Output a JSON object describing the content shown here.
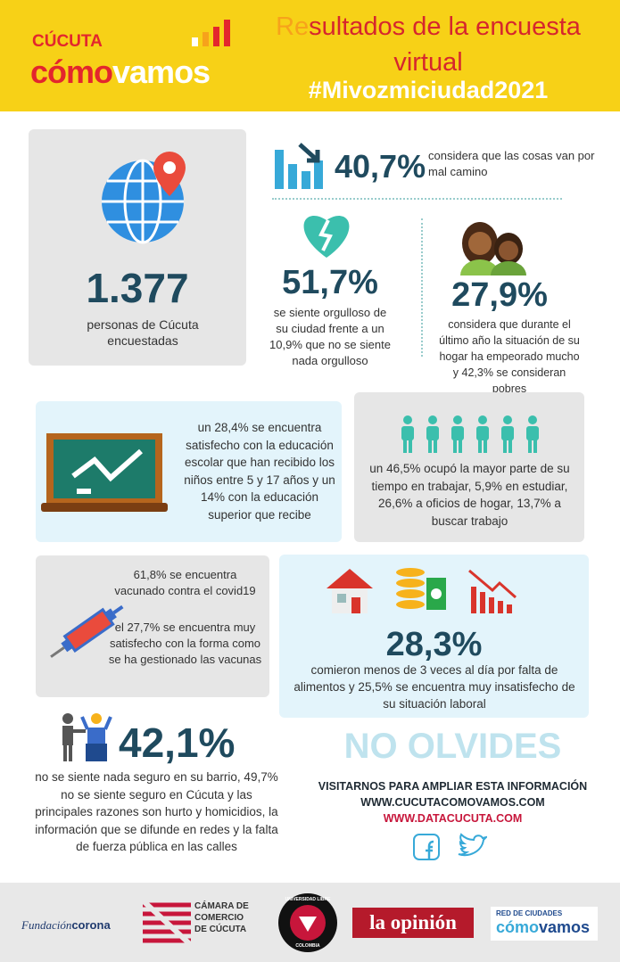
{
  "header": {
    "brand_top": "CÚCUTA",
    "brand_como": "cómo",
    "brand_vamos": "vamos",
    "title_prefix": "Re",
    "title_rest": "sultados de la encuesta virtual",
    "hashtag": "#Mivozmiciudad2021"
  },
  "stats": {
    "total": {
      "value": "1.377",
      "text": "personas de Cúcuta encuestadas"
    },
    "bad_path": {
      "value": "40,7%",
      "text": "considera que las cosas van por mal camino"
    },
    "pride": {
      "value": "51,7%",
      "text": "se siente orgulloso de su ciudad frente a un 10,9% que no se siente nada orgulloso"
    },
    "home": {
      "value": "27,9%",
      "text": "considera que durante el último año la situación de su hogar ha empeorado mucho y 42,3% se consideran pobres"
    },
    "education": {
      "text": "un 28,4% se encuentra satisfecho con la educación escolar que han recibido los niños entre 5 y 17 años y un 14% con la educación superior que recibe"
    },
    "time": {
      "text": "un 46,5% ocupó la mayor parte de su tiempo en trabajar, 5,9% en estudiar, 26,6% a oficios de hogar, 13,7% a buscar trabajo"
    },
    "vaccine": {
      "text_1": "61,8% se encuentra vacunado contra el covid19",
      "text_2": "el 27,7% se encuentra muy satisfecho con la forma como se ha gestionado las vacunas"
    },
    "food": {
      "value": "28,3%",
      "text": "comieron menos de 3 veces al día por falta de alimentos y 25,5% se encuentra muy insatisfecho de su situación laboral"
    },
    "safety": {
      "value": "42,1%",
      "text": "no se siente nada seguro en su barrio, 49,7% no se siente seguro en Cúcuta y las principales razones son hurto y homicidios, la información que se difunde en redes y la falta de fuerza pública en las calles"
    }
  },
  "reminder": {
    "title": "NO OLVIDES",
    "line_1": "VISITARNOS PARA AMPLIAR ESTA INFORMACIÓN",
    "line_2": "WWW.CUCUTACOMOVAMOS.COM",
    "line_3": "WWW.DATACUCUTA.COM"
  },
  "footer": {
    "corona_1": "Fundación",
    "corona_2": "corona",
    "camara": "CÁMARA DE COMERCIO DE CÚCUTA",
    "unilibre_1": "UNIVERSIDAD LIBRE",
    "unilibre_2": "COLOMBIA",
    "opinion": "la opinión",
    "red_1": "RED DE CIUDADES",
    "red_2": "cómo",
    "red_3": "vamos"
  }
}
